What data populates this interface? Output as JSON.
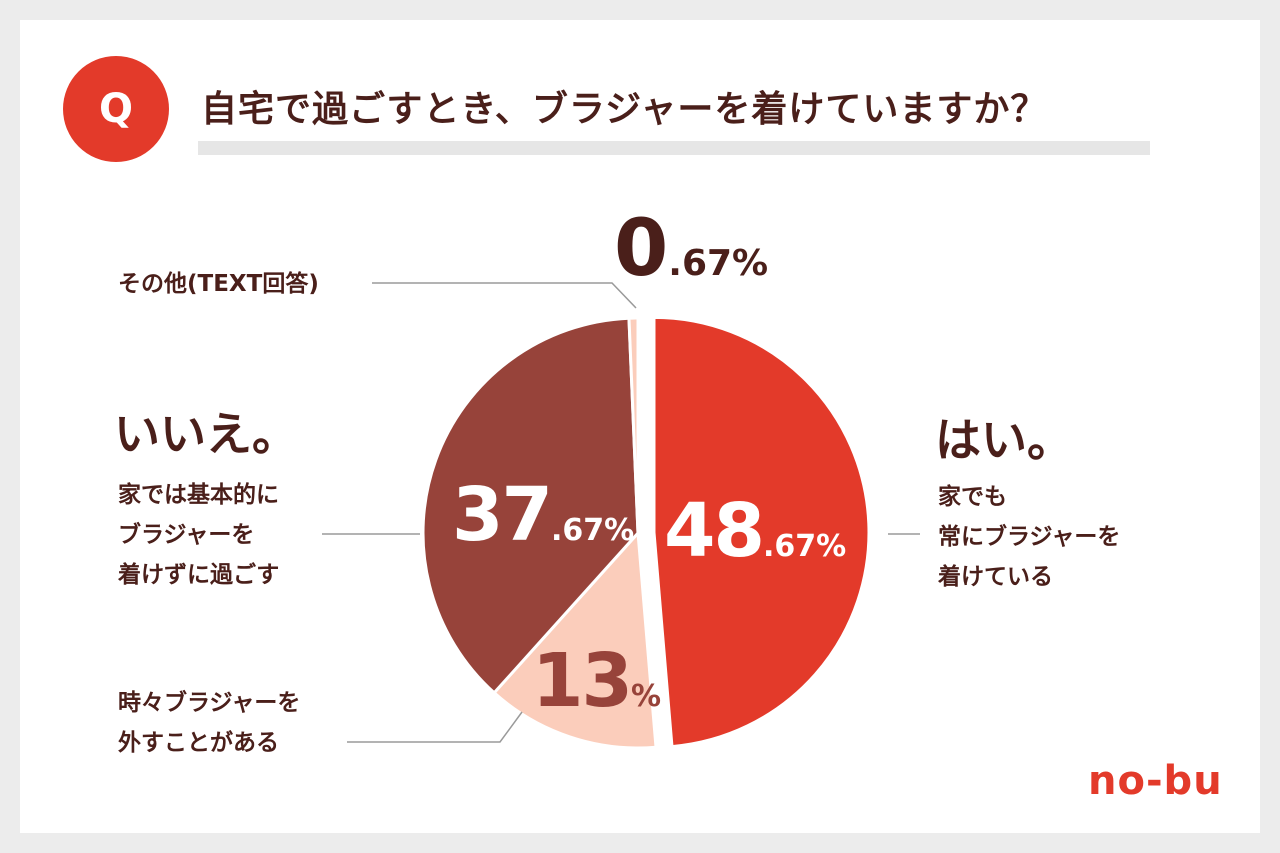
{
  "header": {
    "badge": "Q",
    "title": "自宅で過ごすとき、ブラジャーを着けていますか？"
  },
  "labels": {
    "yes_heading": "はい。",
    "yes_desc": [
      "家でも",
      "常にブラジャーを",
      "着けている"
    ],
    "no_heading": "いいえ。",
    "no_desc": [
      "家では基本的に",
      "ブラジャーを",
      "着けずに過ごす"
    ],
    "sometimes_desc": [
      "時々ブラジャーを",
      "外すことがある"
    ],
    "other_desc": "その他(TEXT回答)"
  },
  "percent_labels": {
    "yes": {
      "int": "48",
      "dec": ".67%"
    },
    "no": {
      "int": "37",
      "dec": ".67%"
    },
    "sometimes": {
      "int": "13",
      "dec": "%"
    },
    "other": {
      "int": "0",
      "dec": ".67%"
    }
  },
  "logo": "no-bu",
  "colors": {
    "yes": "#e33a2a",
    "no": "#97433a",
    "sometimes": "#fbcdbb",
    "other": "#fbcdbb",
    "text": "#4a1f1a",
    "line": "#9a9a9a"
  },
  "chart_data": {
    "type": "pie",
    "title": "自宅で過ごすとき、ブラジャーを着けていますか？",
    "slices": [
      {
        "name": "はい。家でも常にブラジャーを着けている",
        "value": 48.67,
        "exploded": true
      },
      {
        "name": "時々ブラジャーを外すことがある",
        "value": 13
      },
      {
        "name": "いいえ。家では基本的にブラジャーを着けずに過ごす",
        "value": 37.67
      },
      {
        "name": "その他(TEXT回答)",
        "value": 0.67
      }
    ]
  }
}
